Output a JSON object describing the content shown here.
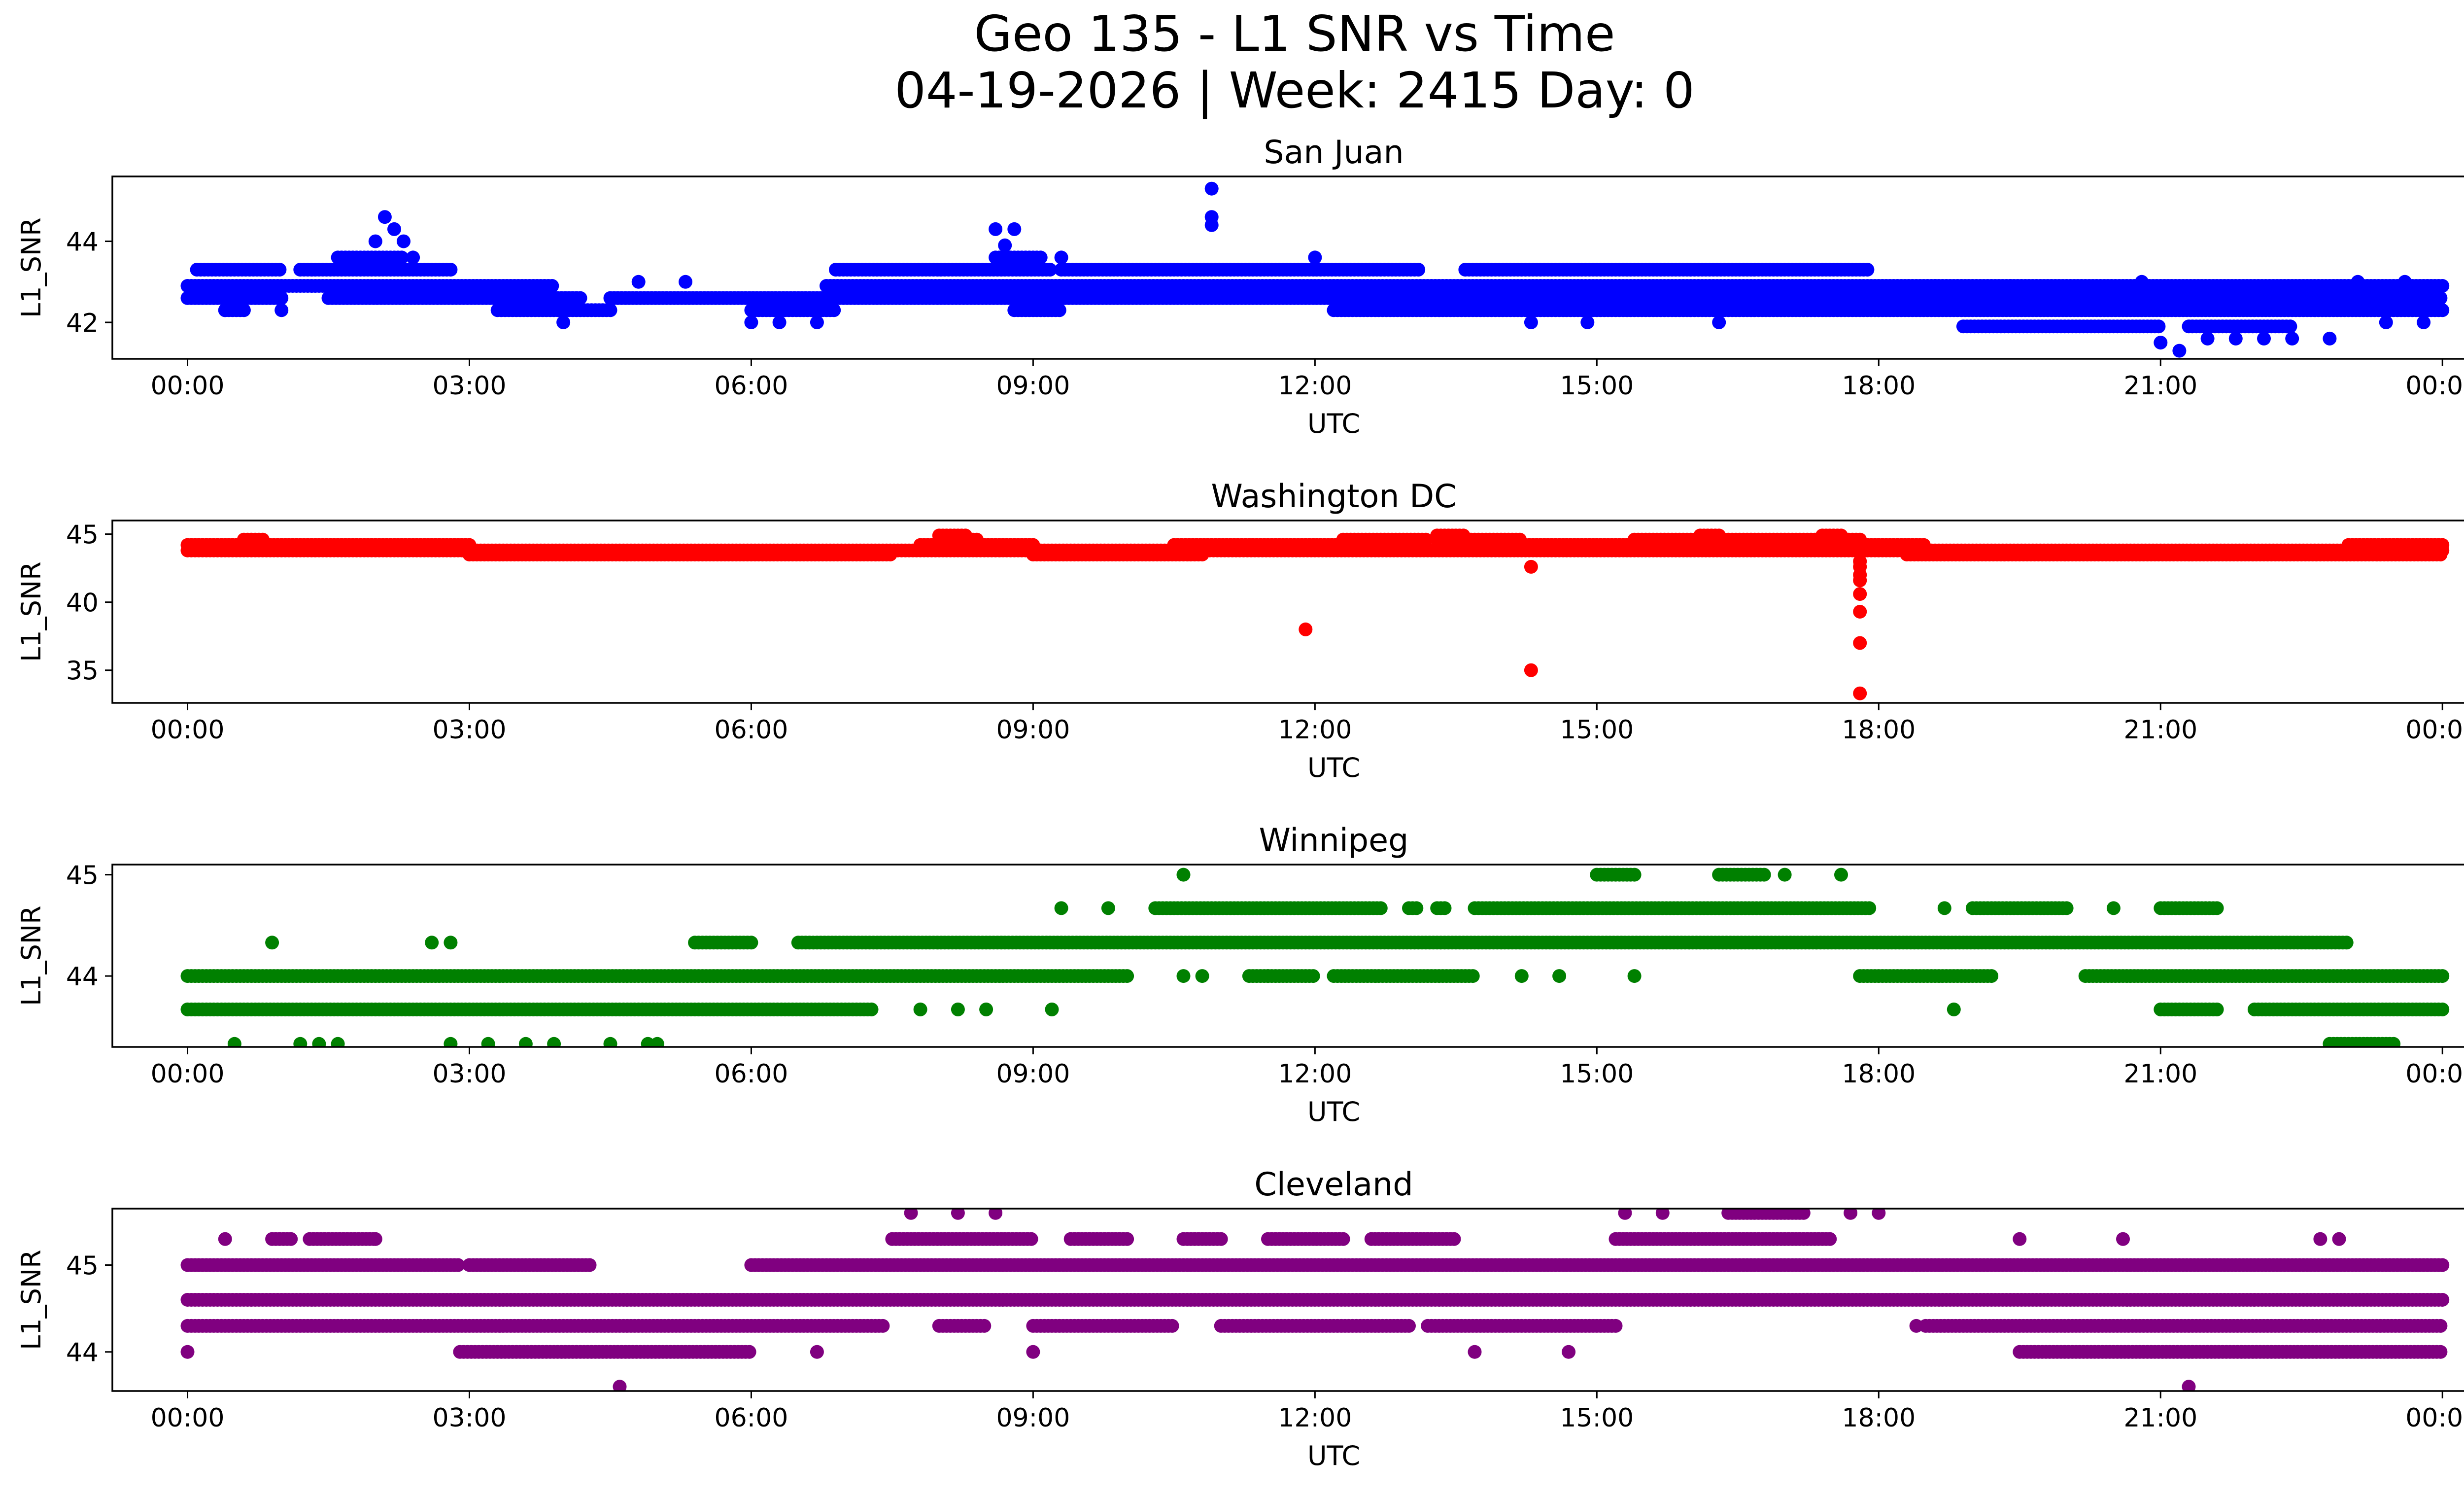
{
  "figure": {
    "title_line1": "Geo 135 - L1 SNR vs Time",
    "title_line2": "04-19-2026 | Week: 2415 Day: 0"
  },
  "chart_data": [
    {
      "type": "scatter",
      "title": "San Juan",
      "xlabel": "UTC",
      "ylabel": "L1_SNR",
      "color": "#0000ff",
      "xlim_hours": [
        -0.8,
        25.2
      ],
      "ylim": [
        41.1,
        45.6
      ],
      "x_ticks": [
        "00:00",
        "03:00",
        "06:00",
        "09:00",
        "12:00",
        "15:00",
        "18:00",
        "21:00",
        "00:00"
      ],
      "x_tick_hours": [
        0,
        3,
        6,
        9,
        12,
        15,
        18,
        21,
        24
      ],
      "y_ticks": [
        42,
        44
      ],
      "bands": [
        {
          "y": 42.6,
          "x_ranges": [
            [
              0,
              1.0
            ],
            [
              1.5,
              4.2
            ],
            [
              4.5,
              24
            ]
          ]
        },
        {
          "y": 42.9,
          "x_ranges": [
            [
              0,
              3.9
            ],
            [
              6.8,
              24
            ]
          ]
        },
        {
          "y": 43.3,
          "x_ranges": [
            [
              0.1,
              1.0
            ],
            [
              1.2,
              2.8
            ],
            [
              6.9,
              9.2
            ],
            [
              9.3,
              13.1
            ],
            [
              13.6,
              17.9
            ]
          ]
        },
        {
          "y": 42.3,
          "x_ranges": [
            [
              0.4,
              0.6
            ],
            [
              3.3,
              4.5
            ],
            [
              6.0,
              6.9
            ],
            [
              8.8,
              9.3
            ],
            [
              12.2,
              24
            ]
          ]
        },
        {
          "y": 41.9,
          "x_ranges": [
            [
              18.9,
              21.0
            ],
            [
              21.3,
              22.4
            ]
          ]
        },
        {
          "y": 43.6,
          "x_ranges": [
            [
              1.6,
              2.3
            ],
            [
              8.6,
              9.1
            ]
          ]
        }
      ],
      "points": [
        {
          "x": 0.4,
          "y": 42.3
        },
        {
          "x": 1.0,
          "y": 42.3
        },
        {
          "x": 2.1,
          "y": 44.6
        },
        {
          "x": 2.2,
          "y": 44.3
        },
        {
          "x": 2.3,
          "y": 44.0
        },
        {
          "x": 2.0,
          "y": 44.0
        },
        {
          "x": 2.4,
          "y": 43.6
        },
        {
          "x": 4.0,
          "y": 42.0
        },
        {
          "x": 4.8,
          "y": 43.0
        },
        {
          "x": 5.3,
          "y": 43.0
        },
        {
          "x": 6.0,
          "y": 42.0
        },
        {
          "x": 6.3,
          "y": 42.0
        },
        {
          "x": 6.7,
          "y": 42.0
        },
        {
          "x": 8.6,
          "y": 44.3
        },
        {
          "x": 8.8,
          "y": 44.3
        },
        {
          "x": 8.7,
          "y": 43.9
        },
        {
          "x": 9.3,
          "y": 43.6
        },
        {
          "x": 10.9,
          "y": 45.3
        },
        {
          "x": 10.9,
          "y": 44.6
        },
        {
          "x": 10.9,
          "y": 44.4
        },
        {
          "x": 12.0,
          "y": 43.6
        },
        {
          "x": 14.3,
          "y": 42.0
        },
        {
          "x": 14.9,
          "y": 42.0
        },
        {
          "x": 16.3,
          "y": 42.0
        },
        {
          "x": 18.6,
          "y": 42.9
        },
        {
          "x": 19.4,
          "y": 42.9
        },
        {
          "x": 20.1,
          "y": 42.6
        },
        {
          "x": 20.8,
          "y": 43.0
        },
        {
          "x": 21.0,
          "y": 41.5
        },
        {
          "x": 21.2,
          "y": 41.3
        },
        {
          "x": 21.5,
          "y": 41.6
        },
        {
          "x": 21.8,
          "y": 41.6
        },
        {
          "x": 22.1,
          "y": 41.6
        },
        {
          "x": 22.4,
          "y": 41.6
        },
        {
          "x": 22.8,
          "y": 41.6
        },
        {
          "x": 23.1,
          "y": 43.0
        },
        {
          "x": 23.4,
          "y": 42.0
        },
        {
          "x": 23.8,
          "y": 42.0
        },
        {
          "x": 23.6,
          "y": 43.0
        }
      ]
    },
    {
      "type": "scatter",
      "title": "Washington DC",
      "xlabel": "UTC",
      "ylabel": "L1_SNR",
      "color": "#ff0000",
      "xlim_hours": [
        -0.8,
        25.2
      ],
      "ylim": [
        32.6,
        46.0
      ],
      "x_ticks": [
        "00:00",
        "03:00",
        "06:00",
        "09:00",
        "12:00",
        "15:00",
        "18:00",
        "21:00",
        "00:00"
      ],
      "x_tick_hours": [
        0,
        3,
        6,
        9,
        12,
        15,
        18,
        21,
        24
      ],
      "y_ticks": [
        35,
        40,
        45
      ],
      "bands": [
        {
          "y": 44.2,
          "x_ranges": [
            [
              0,
              3.0
            ],
            [
              7.8,
              9.0
            ],
            [
              10.5,
              13.0
            ],
            [
              14.0,
              18.5
            ],
            [
              23.0,
              24
            ]
          ]
        },
        {
          "y": 43.8,
          "x_ranges": [
            [
              0,
              24
            ]
          ]
        },
        {
          "y": 43.5,
          "x_ranges": [
            [
              3.0,
              7.5
            ],
            [
              9.0,
              10.8
            ],
            [
              18.3,
              24
            ]
          ]
        },
        {
          "y": 44.6,
          "x_ranges": [
            [
              0.6,
              0.8
            ],
            [
              8.0,
              8.4
            ],
            [
              12.3,
              13.2
            ],
            [
              13.3,
              14.2
            ],
            [
              15.4,
              17.8
            ]
          ]
        },
        {
          "y": 44.9,
          "x_ranges": [
            [
              8.0,
              8.3
            ],
            [
              13.3,
              13.6
            ],
            [
              16.1,
              16.3
            ],
            [
              17.4,
              17.6
            ]
          ]
        }
      ],
      "points": [
        {
          "x": 11.9,
          "y": 38.0
        },
        {
          "x": 14.3,
          "y": 42.6
        },
        {
          "x": 14.3,
          "y": 35.0
        },
        {
          "x": 17.8,
          "y": 42.0
        },
        {
          "x": 17.8,
          "y": 41.6
        },
        {
          "x": 17.8,
          "y": 40.6
        },
        {
          "x": 17.8,
          "y": 39.3
        },
        {
          "x": 17.8,
          "y": 37.0
        },
        {
          "x": 17.8,
          "y": 33.3
        },
        {
          "x": 17.8,
          "y": 42.6
        },
        {
          "x": 17.8,
          "y": 43.0
        }
      ]
    },
    {
      "type": "scatter",
      "title": "Winnipeg",
      "xlabel": "UTC",
      "ylabel": "L1_SNR",
      "color": "#008000",
      "xlim_hours": [
        -0.8,
        25.2
      ],
      "ylim": [
        43.3,
        45.1
      ],
      "x_ticks": [
        "00:00",
        "03:00",
        "06:00",
        "09:00",
        "12:00",
        "15:00",
        "18:00",
        "21:00",
        "00:00"
      ],
      "x_tick_hours": [
        0,
        3,
        6,
        9,
        12,
        15,
        18,
        21,
        24
      ],
      "y_ticks": [
        44,
        45
      ],
      "bands": [
        {
          "y": 44.0,
          "x_ranges": [
            [
              0,
              10.0
            ],
            [
              11.3,
              12.0
            ],
            [
              12.2,
              13.7
            ],
            [
              17.8,
              19.2
            ],
            [
              20.2,
              24
            ]
          ]
        },
        {
          "y": 43.67,
          "x_ranges": [
            [
              0,
              7.3
            ],
            [
              21.0,
              21.6
            ],
            [
              22.0,
              24
            ]
          ]
        },
        {
          "y": 44.33,
          "x_ranges": [
            [
              5.4,
              6.0
            ],
            [
              6.5,
              23.0
            ]
          ]
        },
        {
          "y": 44.67,
          "x_ranges": [
            [
              10.3,
              12.7
            ],
            [
              13.0,
              13.1
            ],
            [
              13.3,
              13.4
            ],
            [
              13.7,
              17.9
            ],
            [
              19.0,
              20.0
            ],
            [
              21.0,
              21.6
            ]
          ]
        },
        {
          "y": 43.33,
          "x_ranges": [
            [
              22.8,
              23.5
            ]
          ]
        },
        {
          "y": 45.0,
          "x_ranges": [
            [
              15.0,
              15.4
            ],
            [
              16.3,
              16.8
            ]
          ]
        }
      ],
      "points": [
        {
          "x": 0.5,
          "y": 43.33
        },
        {
          "x": 1.2,
          "y": 43.33
        },
        {
          "x": 1.4,
          "y": 43.33
        },
        {
          "x": 1.6,
          "y": 43.33
        },
        {
          "x": 2.8,
          "y": 43.33
        },
        {
          "x": 3.2,
          "y": 43.33
        },
        {
          "x": 3.6,
          "y": 43.33
        },
        {
          "x": 3.9,
          "y": 43.33
        },
        {
          "x": 4.5,
          "y": 43.33
        },
        {
          "x": 4.9,
          "y": 43.33
        },
        {
          "x": 5.0,
          "y": 43.33
        },
        {
          "x": 0.9,
          "y": 44.33
        },
        {
          "x": 2.6,
          "y": 44.33
        },
        {
          "x": 2.8,
          "y": 44.33
        },
        {
          "x": 7.8,
          "y": 43.67
        },
        {
          "x": 8.2,
          "y": 43.67
        },
        {
          "x": 8.5,
          "y": 43.67
        },
        {
          "x": 9.2,
          "y": 43.67
        },
        {
          "x": 9.3,
          "y": 44.67
        },
        {
          "x": 9.8,
          "y": 44.67
        },
        {
          "x": 10.6,
          "y": 45.0
        },
        {
          "x": 10.6,
          "y": 44.0
        },
        {
          "x": 10.8,
          "y": 44.0
        },
        {
          "x": 11.5,
          "y": 44.0
        },
        {
          "x": 14.2,
          "y": 44.0
        },
        {
          "x": 14.6,
          "y": 44.0
        },
        {
          "x": 15.4,
          "y": 44.0
        },
        {
          "x": 17.0,
          "y": 45.0
        },
        {
          "x": 17.6,
          "y": 45.0
        },
        {
          "x": 18.7,
          "y": 44.67
        },
        {
          "x": 18.8,
          "y": 43.67
        },
        {
          "x": 20.5,
          "y": 44.67
        }
      ]
    },
    {
      "type": "scatter",
      "title": "Cleveland",
      "xlabel": "UTC",
      "ylabel": "L1_SNR",
      "color": "#800080",
      "xlim_hours": [
        -0.8,
        25.2
      ],
      "ylim": [
        43.55,
        45.65
      ],
      "x_ticks": [
        "00:00",
        "03:00",
        "06:00",
        "09:00",
        "12:00",
        "15:00",
        "18:00",
        "21:00",
        "00:00"
      ],
      "x_tick_hours": [
        0,
        3,
        6,
        9,
        12,
        15,
        18,
        21,
        24
      ],
      "y_ticks": [
        44,
        45
      ],
      "bands": [
        {
          "y": 45.0,
          "x_ranges": [
            [
              0,
              2.9
            ],
            [
              3.0,
              4.3
            ],
            [
              6.0,
              24
            ]
          ]
        },
        {
          "y": 44.6,
          "x_ranges": [
            [
              0,
              24
            ]
          ]
        },
        {
          "y": 44.3,
          "x_ranges": [
            [
              0,
              7.4
            ],
            [
              8.0,
              8.5
            ],
            [
              9.0,
              10.5
            ],
            [
              11.0,
              13.0
            ],
            [
              13.2,
              15.2
            ],
            [
              18.5,
              24
            ]
          ]
        },
        {
          "y": 44.0,
          "x_ranges": [
            [
              2.9,
              6.0
            ],
            [
              19.5,
              24
            ]
          ]
        },
        {
          "y": 45.3,
          "x_ranges": [
            [
              0.9,
              1.1
            ],
            [
              1.3,
              2.0
            ],
            [
              7.5,
              9.0
            ],
            [
              9.4,
              10.0
            ],
            [
              10.6,
              11.0
            ],
            [
              11.5,
              12.3
            ],
            [
              12.6,
              13.5
            ],
            [
              15.2,
              17.5
            ]
          ]
        },
        {
          "y": 45.6,
          "x_ranges": [
            [
              16.4,
              17.2
            ]
          ]
        }
      ],
      "points": [
        {
          "x": 0.0,
          "y": 44.0
        },
        {
          "x": 0.4,
          "y": 45.3
        },
        {
          "x": 2.0,
          "y": 45.3
        },
        {
          "x": 4.6,
          "y": 43.6
        },
        {
          "x": 7.7,
          "y": 45.6
        },
        {
          "x": 8.2,
          "y": 45.6
        },
        {
          "x": 8.6,
          "y": 45.6
        },
        {
          "x": 9.0,
          "y": 44.0
        },
        {
          "x": 6.7,
          "y": 44.0
        },
        {
          "x": 13.7,
          "y": 44.0
        },
        {
          "x": 14.7,
          "y": 44.0
        },
        {
          "x": 15.3,
          "y": 45.6
        },
        {
          "x": 15.7,
          "y": 45.6
        },
        {
          "x": 17.7,
          "y": 45.6
        },
        {
          "x": 18.0,
          "y": 45.6
        },
        {
          "x": 19.5,
          "y": 45.3
        },
        {
          "x": 20.6,
          "y": 45.3
        },
        {
          "x": 21.3,
          "y": 43.6
        },
        {
          "x": 22.7,
          "y": 45.3
        },
        {
          "x": 22.9,
          "y": 45.3
        },
        {
          "x": 18.4,
          "y": 44.3
        }
      ]
    }
  ]
}
